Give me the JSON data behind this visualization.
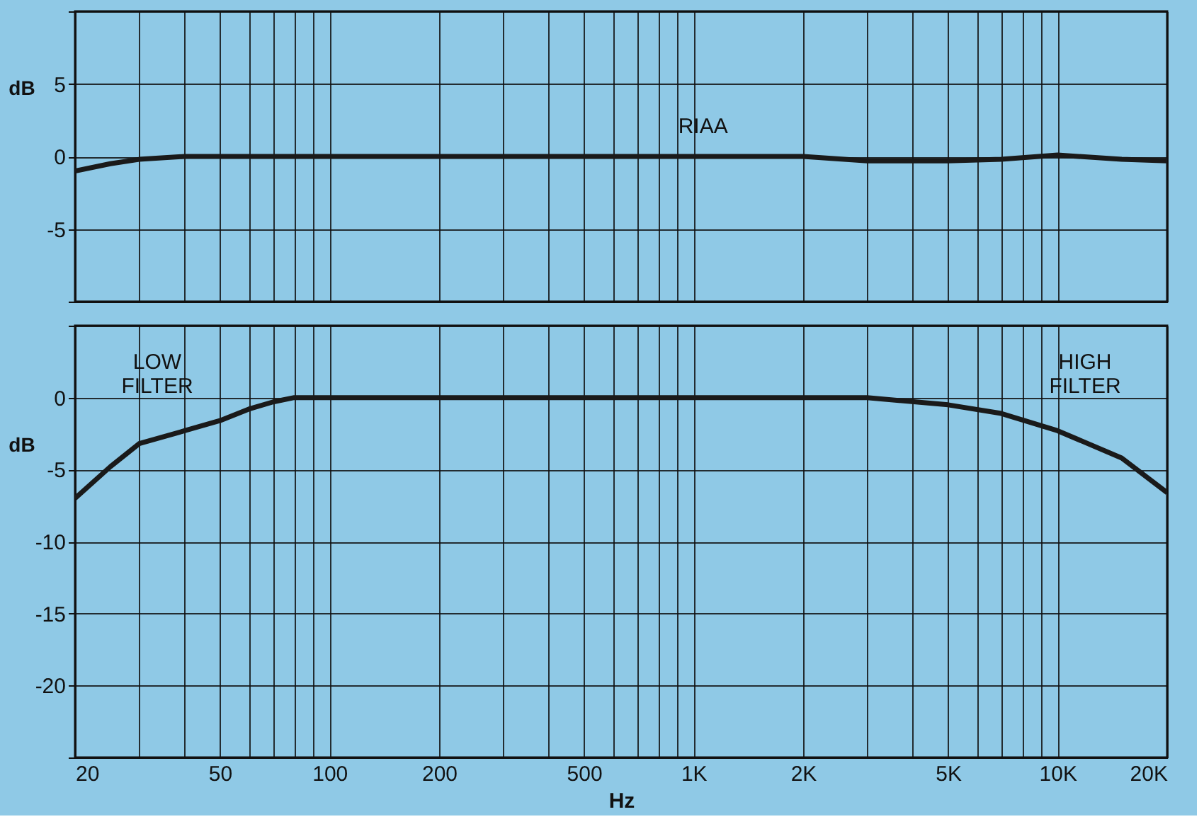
{
  "chart_data": [
    {
      "type": "line",
      "ylabel": "dB",
      "log": "x",
      "grid": true,
      "tick_labels": "y",
      "xlim": [
        20,
        20000
      ],
      "ylim": [
        -10,
        10
      ],
      "xticks": [
        {
          "value": 20,
          "label": null
        },
        {
          "value": 30,
          "label": null
        },
        {
          "value": 40,
          "label": null
        },
        {
          "value": 50,
          "label": null
        },
        {
          "value": 60,
          "label": null
        },
        {
          "value": 70,
          "label": null
        },
        {
          "value": 80,
          "label": null
        },
        {
          "value": 90,
          "label": null
        },
        {
          "value": 100,
          "label": null
        },
        {
          "value": 200,
          "label": null
        },
        {
          "value": 300,
          "label": null
        },
        {
          "value": 400,
          "label": null
        },
        {
          "value": 500,
          "label": null
        },
        {
          "value": 600,
          "label": null
        },
        {
          "value": 700,
          "label": null
        },
        {
          "value": 800,
          "label": null
        },
        {
          "value": 900,
          "label": null
        },
        {
          "value": 1000,
          "label": null
        },
        {
          "value": 2000,
          "label": null
        },
        {
          "value": 3000,
          "label": null
        },
        {
          "value": 4000,
          "label": null
        },
        {
          "value": 5000,
          "label": null
        },
        {
          "value": 6000,
          "label": null
        },
        {
          "value": 7000,
          "label": null
        },
        {
          "value": 8000,
          "label": null
        },
        {
          "value": 9000,
          "label": null
        },
        {
          "value": 10000,
          "label": null
        },
        {
          "value": 20000,
          "label": null
        }
      ],
      "yticks": [
        {
          "value": 10,
          "label": null
        },
        5,
        0,
        -5,
        {
          "value": -10,
          "label": null
        }
      ],
      "x": [
        20,
        25,
        30,
        40,
        60,
        100,
        300,
        1000,
        2000,
        3000,
        5000,
        7000,
        10000,
        15000,
        20000
      ],
      "series": [
        {
          "color": "#1a1a1a",
          "values": [
            -1,
            -0.5,
            -0.2,
            0,
            0,
            0,
            0,
            0,
            0,
            -0.3,
            -0.3,
            -0.2,
            0.1,
            -0.2,
            -0.3
          ]
        }
      ],
      "annotations": [
        "RIAA"
      ]
    },
    {
      "type": "line",
      "xlabel": "Hz",
      "ylabel": "dB",
      "log": "x",
      "grid": true,
      "xlim": [
        20,
        20000
      ],
      "ylim": [
        -25,
        5
      ],
      "xticks": [
        20,
        {
          "value": 30,
          "label": null
        },
        {
          "value": 40,
          "label": null
        },
        50,
        {
          "value": 60,
          "label": null
        },
        {
          "value": 70,
          "label": null
        },
        {
          "value": 80,
          "label": null
        },
        {
          "value": 90,
          "label": null
        },
        100,
        200,
        {
          "value": 300,
          "label": null
        },
        {
          "value": 400,
          "label": null
        },
        500,
        {
          "value": 600,
          "label": null
        },
        {
          "value": 700,
          "label": null
        },
        {
          "value": 800,
          "label": null
        },
        {
          "value": 900,
          "label": null
        },
        {
          "value": 1000,
          "label": "1K"
        },
        {
          "value": 2000,
          "label": "2K"
        },
        {
          "value": 3000,
          "label": null
        },
        {
          "value": 4000,
          "label": null
        },
        {
          "value": 5000,
          "label": "5K"
        },
        {
          "value": 6000,
          "label": null
        },
        {
          "value": 7000,
          "label": null
        },
        {
          "value": 8000,
          "label": null
        },
        {
          "value": 9000,
          "label": null
        },
        {
          "value": 10000,
          "label": "10K"
        },
        {
          "value": 20000,
          "label": "20K"
        }
      ],
      "yticks": [
        {
          "value": 5,
          "label": null
        },
        0,
        -5,
        -10,
        -15,
        -20,
        {
          "value": -25,
          "label": null
        }
      ],
      "x": [
        20,
        25,
        30,
        40,
        50,
        60,
        70,
        80,
        1000,
        3000,
        5000,
        7000,
        10000,
        15000,
        20000
      ],
      "series": [
        {
          "color": "#1a1a1a",
          "values": [
            -7,
            -4.8,
            -3.2,
            -2.3,
            -1.6,
            -0.8,
            -0.3,
            0,
            0,
            0,
            -0.5,
            -1.1,
            -2.3,
            -4.2,
            -6.6
          ]
        }
      ],
      "annotations": [
        "LOW\nFILTER",
        "HIGH\nFILTER"
      ]
    }
  ]
}
